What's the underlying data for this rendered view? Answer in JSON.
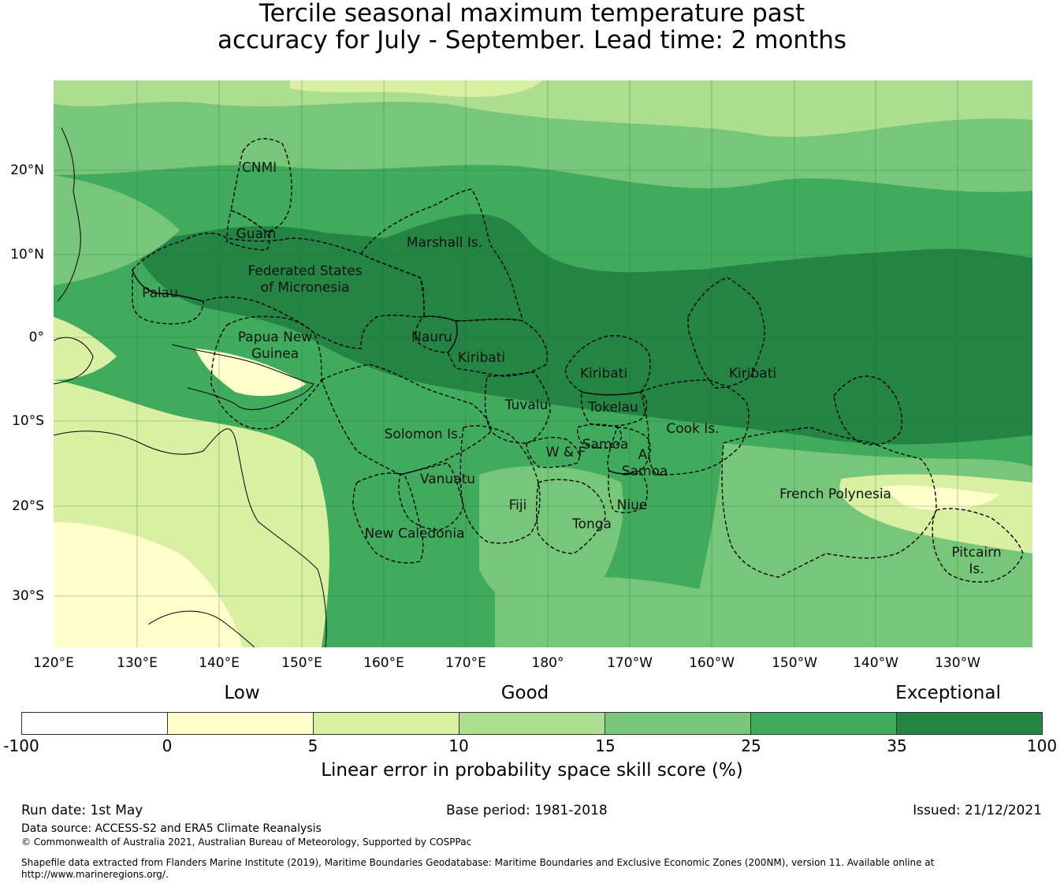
{
  "title": {
    "line1": "Tercile seasonal maximum temperature past",
    "line2": "accuracy for July - September. Lead time: 2 months"
  },
  "map": {
    "lon_ticks": [
      "120°E",
      "130°E",
      "140°E",
      "150°E",
      "160°E",
      "170°E",
      "180°",
      "170°W",
      "160°W",
      "150°W",
      "140°W",
      "130°W"
    ],
    "lat_ticks": [
      "20°N",
      "10°N",
      "0°",
      "10°S",
      "20°S",
      "30°S"
    ],
    "regions": {
      "cnmi": "CNMI",
      "guam": "Guam",
      "marshall": "Marshall Is.",
      "fsm1": "Federated States",
      "fsm2": "of Micronesia",
      "palau": "Palau",
      "png1": "Papua New",
      "png2": "Guinea",
      "nauru": "Nauru",
      "kiribati_w": "Kiribati",
      "kiribati_c": "Kiribati",
      "kiribati_e": "Kiribati",
      "tuvalu": "Tuvalu",
      "tokelau": "Tokelau",
      "solomon": "Solomon Is.",
      "samoa": "Samoa",
      "wf": "W & F",
      "asamoa1": "A.",
      "asamoa2": "Samoa",
      "cook": "Cook Is.",
      "vanuatu": "Vanuatu",
      "fiji": "Fiji",
      "niue": "Niue",
      "tonga": "Tonga",
      "frpoly": "French Polynesia",
      "newcal": "New Caledonia",
      "pitcairn1": "Pitcairn",
      "pitcairn2": "Is."
    }
  },
  "legend": {
    "categories": [
      "Low",
      "Good",
      "Exceptional"
    ],
    "ticks": [
      "-100",
      "0",
      "5",
      "10",
      "15",
      "25",
      "35",
      "100"
    ],
    "colors": [
      "#ffffff",
      "#ffffcc",
      "#d9f0a3",
      "#addd8e",
      "#78c679",
      "#41ab5d",
      "#238443"
    ],
    "label": "Linear error in probability space skill score (%)"
  },
  "footer": {
    "run_date": "Run date: 1st May",
    "base_period": "Base period: 1981-2018",
    "issued": "Issued: 21/12/2021",
    "data_source": "Data source: ACCESS-S2 and ERA5 Climate Reanalysis",
    "copyright": "© Commonwealth of Australia 2021, Australian Bureau of Meteorology, Supported by COSPPac",
    "shapefile1": "Shapefile data extracted from Flanders Marine Institute (2019), Maritime Boundaries Geodatabase: Maritime Boundaries and Exclusive Economic Zones (200NM), version 11. Available online at",
    "shapefile2": "http://www.marineregions.org/."
  }
}
